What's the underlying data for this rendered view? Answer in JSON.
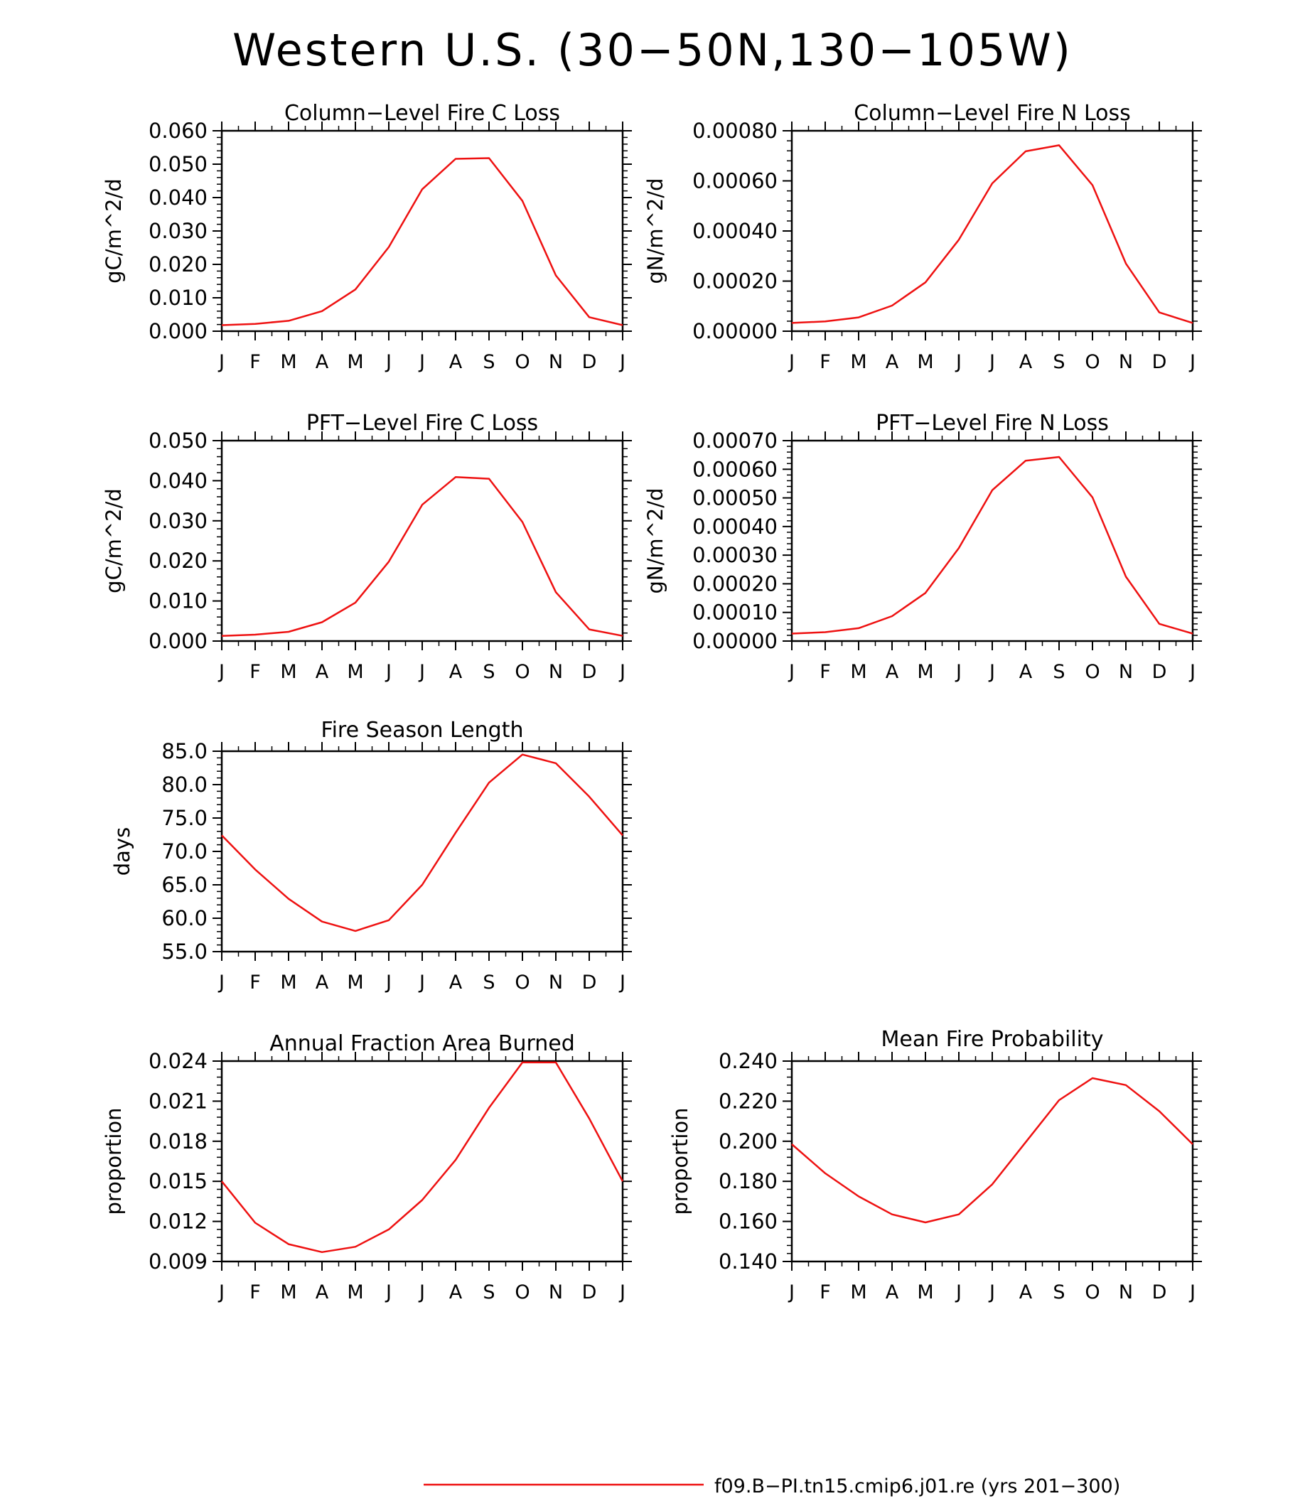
{
  "page_title": "Western U.S. (30−50N,130−105W)",
  "colors": {
    "series": "#ee1111",
    "axis": "#000000",
    "background": "#ffffff"
  },
  "legend": {
    "label": "f09.B−PI.tn15.cmip6.j01.re (yrs 201−300)",
    "color": "#ee1111"
  },
  "chart_data": [
    {
      "type": "line",
      "title": "Column−Level Fire C Loss",
      "ylabel": "gC/m^2/d",
      "xlabel": "",
      "x": [
        "J",
        "F",
        "M",
        "A",
        "M",
        "J",
        "J",
        "A",
        "S",
        "O",
        "N",
        "D",
        "J"
      ],
      "ylim": [
        0.0,
        0.06
      ],
      "yticks": [
        "0.000",
        "0.010",
        "0.020",
        "0.030",
        "0.040",
        "0.050",
        "0.060"
      ],
      "series": [
        {
          "values": [
            0.0018,
            0.0022,
            0.0031,
            0.006,
            0.0125,
            0.0252,
            0.0425,
            0.0516,
            0.0518,
            0.039,
            0.0167,
            0.0042,
            0.0018
          ]
        }
      ]
    },
    {
      "type": "line",
      "title": "Column−Level Fire N Loss",
      "ylabel": "gN/m^2/d",
      "xlabel": "",
      "x": [
        "J",
        "F",
        "M",
        "A",
        "M",
        "J",
        "J",
        "A",
        "S",
        "O",
        "N",
        "D",
        "J"
      ],
      "ylim": [
        0.0,
        0.0008
      ],
      "yticks": [
        "0.00000",
        "0.00020",
        "0.00040",
        "0.00060",
        "0.00080"
      ],
      "series": [
        {
          "values": [
            3.3e-05,
            3.9e-05,
            5.5e-05,
            0.000102,
            0.000195,
            0.000365,
            0.00059,
            0.000718,
            0.000742,
            0.000583,
            0.00027,
            7.5e-05,
            3.3e-05
          ]
        }
      ]
    },
    {
      "type": "line",
      "title": "PFT−Level Fire C Loss",
      "ylabel": "gC/m^2/d",
      "xlabel": "",
      "x": [
        "J",
        "F",
        "M",
        "A",
        "M",
        "J",
        "J",
        "A",
        "S",
        "O",
        "N",
        "D",
        "J"
      ],
      "ylim": [
        0.0,
        0.05
      ],
      "yticks": [
        "0.000",
        "0.010",
        "0.020",
        "0.030",
        "0.040",
        "0.050"
      ],
      "series": [
        {
          "values": [
            0.0013,
            0.0016,
            0.0023,
            0.0047,
            0.0096,
            0.0198,
            0.034,
            0.0409,
            0.0405,
            0.0297,
            0.0122,
            0.0029,
            0.0013
          ]
        }
      ]
    },
    {
      "type": "line",
      "title": "PFT−Level Fire N Loss",
      "ylabel": "gN/m^2/d",
      "xlabel": "",
      "x": [
        "J",
        "F",
        "M",
        "A",
        "M",
        "J",
        "J",
        "A",
        "S",
        "O",
        "N",
        "D",
        "J"
      ],
      "ylim": [
        0.0,
        0.0007
      ],
      "yticks": [
        "0.00000",
        "0.00010",
        "0.00020",
        "0.00030",
        "0.00040",
        "0.00050",
        "0.00060",
        "0.00070"
      ],
      "series": [
        {
          "values": [
            2.6e-05,
            3.1e-05,
            4.5e-05,
            8.7e-05,
            0.000168,
            0.000325,
            0.000527,
            0.00063,
            0.000643,
            0.000502,
            0.000225,
            6e-05,
            2.6e-05
          ]
        }
      ]
    },
    {
      "type": "line",
      "title": "Fire Season Length",
      "ylabel": "days",
      "xlabel": "",
      "x": [
        "J",
        "F",
        "M",
        "A",
        "M",
        "J",
        "J",
        "A",
        "S",
        "O",
        "N",
        "D",
        "J"
      ],
      "ylim": [
        55.0,
        85.0
      ],
      "yticks": [
        "55.0",
        "60.0",
        "65.0",
        "70.0",
        "75.0",
        "80.0",
        "85.0"
      ],
      "series": [
        {
          "values": [
            72.4,
            67.3,
            62.9,
            59.5,
            58.1,
            59.7,
            65.0,
            72.8,
            80.3,
            84.5,
            83.2,
            78.2,
            72.4
          ]
        }
      ]
    },
    {
      "type": "line",
      "title": "Annual Fraction Area Burned",
      "ylabel": "proportion",
      "xlabel": "",
      "x": [
        "J",
        "F",
        "M",
        "A",
        "M",
        "J",
        "J",
        "A",
        "S",
        "O",
        "N",
        "D",
        "J"
      ],
      "ylim": [
        0.009,
        0.024
      ],
      "yticks": [
        "0.009",
        "0.012",
        "0.015",
        "0.018",
        "0.021",
        "0.024"
      ],
      "series": [
        {
          "values": [
            0.015,
            0.0119,
            0.0103,
            0.0097,
            0.0101,
            0.0114,
            0.0136,
            0.0166,
            0.0205,
            0.0239,
            0.0239,
            0.0197,
            0.015
          ]
        }
      ]
    },
    {
      "type": "line",
      "title": "Mean Fire Probability",
      "ylabel": "proportion",
      "xlabel": "",
      "x": [
        "J",
        "F",
        "M",
        "A",
        "M",
        "J",
        "J",
        "A",
        "S",
        "O",
        "N",
        "D",
        "J"
      ],
      "ylim": [
        0.14,
        0.24
      ],
      "yticks": [
        "0.140",
        "0.160",
        "0.180",
        "0.200",
        "0.220",
        "0.240"
      ],
      "series": [
        {
          "values": [
            0.1985,
            0.184,
            0.1725,
            0.1635,
            0.1595,
            0.1635,
            0.1785,
            0.1995,
            0.2205,
            0.2315,
            0.228,
            0.215,
            0.1985
          ]
        }
      ]
    }
  ]
}
